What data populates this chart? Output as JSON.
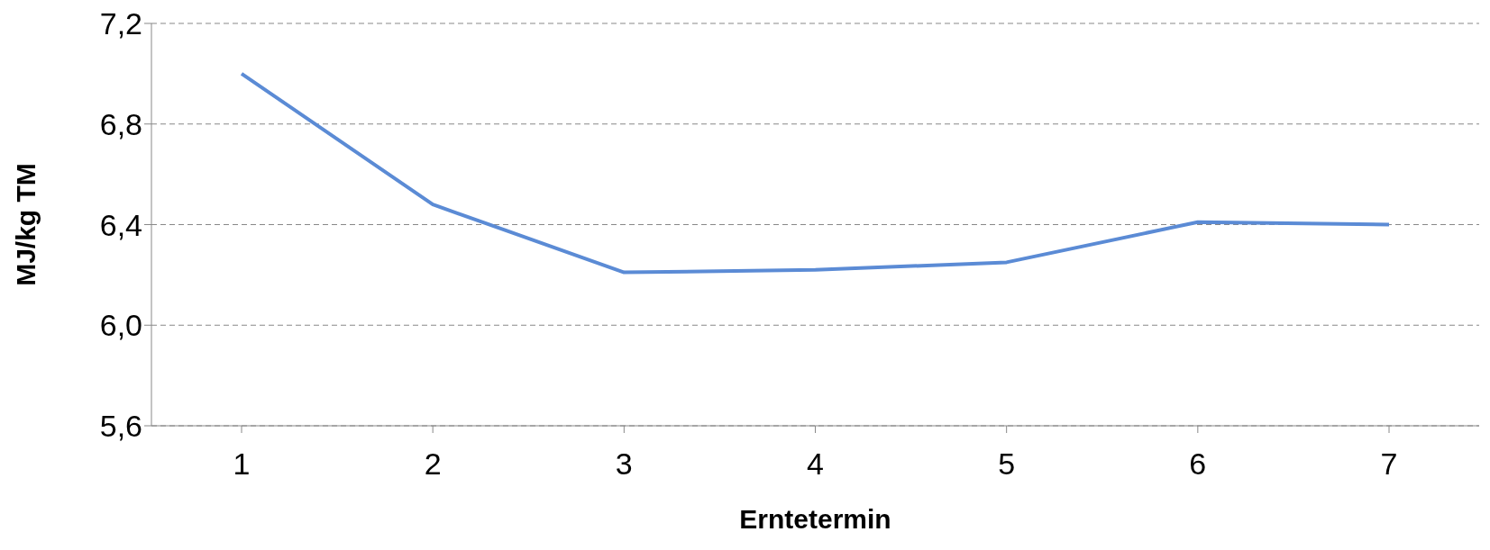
{
  "chart_data": {
    "type": "line",
    "xlabel": "Erntetermin",
    "ylabel": "MJ/kg TM",
    "categories": [
      "1",
      "2",
      "3",
      "4",
      "5",
      "6",
      "7"
    ],
    "series": [
      {
        "color": "#5b8bd5",
        "values": [
          7.0,
          6.48,
          6.21,
          6.22,
          6.25,
          6.41,
          6.4
        ]
      }
    ],
    "ylim": [
      5.6,
      7.2
    ],
    "yticks": [
      {
        "value": 5.6,
        "label": "5,6"
      },
      {
        "value": 6.0,
        "label": "6,0"
      },
      {
        "value": 6.4,
        "label": "6,4"
      },
      {
        "value": 6.8,
        "label": "6,8"
      },
      {
        "value": 7.2,
        "label": "7,2"
      }
    ],
    "grid": "y",
    "marker": "none"
  }
}
